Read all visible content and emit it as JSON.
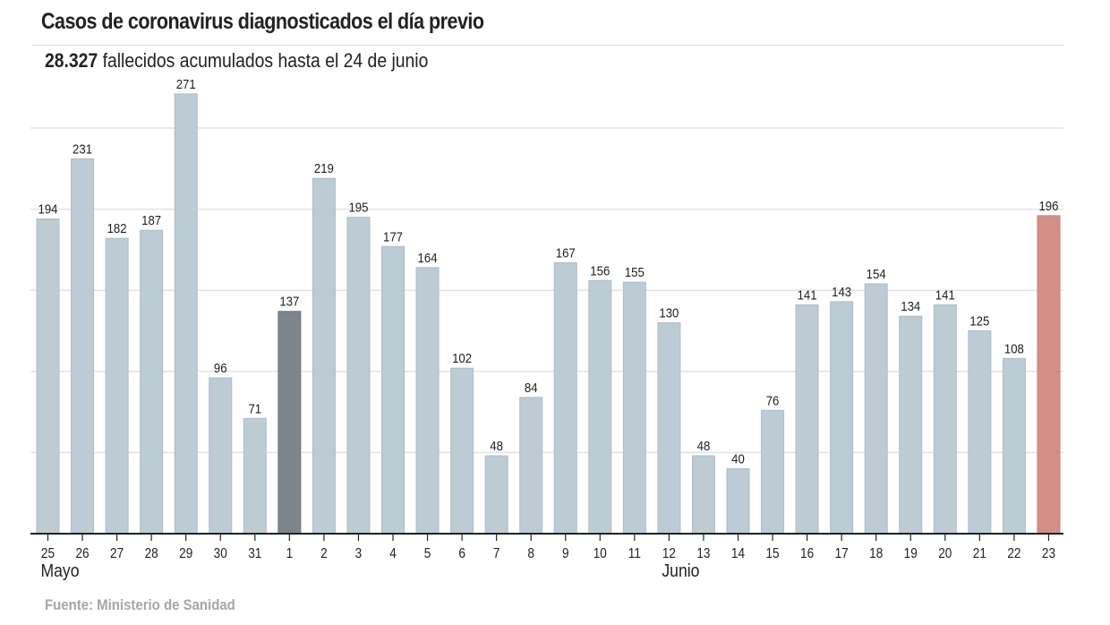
{
  "header": {
    "title": "Casos de coronavirus diagnosticados el día previo",
    "subtitle_value": "28.327",
    "subtitle_text": " fallecidos acumulados hasta el 24 de junio"
  },
  "footer": {
    "source": "Fuente: Ministerio de Sanidad"
  },
  "chart_data": {
    "type": "bar",
    "title": "Casos de coronavirus diagnosticados el día previo",
    "subtitle": "28.327 fallecidos acumulados hasta el 24 de junio",
    "xlabel": "",
    "ylabel": "",
    "ylim": [
      0,
      300
    ],
    "gridlines": [
      0,
      50,
      100,
      150,
      200,
      250
    ],
    "grid": true,
    "y_tick_labels_shown": false,
    "categories": [
      "25",
      "26",
      "27",
      "28",
      "29",
      "30",
      "31",
      "1",
      "2",
      "3",
      "4",
      "5",
      "6",
      "7",
      "8",
      "9",
      "10",
      "11",
      "12",
      "13",
      "14",
      "15",
      "16",
      "17",
      "18",
      "19",
      "20",
      "21",
      "22",
      "23"
    ],
    "values": [
      194,
      231,
      182,
      187,
      271,
      96,
      71,
      137,
      219,
      195,
      177,
      164,
      102,
      48,
      84,
      167,
      156,
      155,
      130,
      48,
      40,
      76,
      141,
      143,
      154,
      134,
      141,
      125,
      108,
      196
    ],
    "month_labels": [
      {
        "label": "Mayo",
        "at_category": "25"
      },
      {
        "label": "Junio",
        "at_category": "12"
      }
    ],
    "highlights": [
      {
        "category": "1",
        "role": "first-of-month"
      },
      {
        "category": "23",
        "role": "latest"
      }
    ],
    "colors": {
      "default": "#bccbd4",
      "highlight_month": "#7d858d",
      "latest": "#d38f87",
      "grid": "#e3e3e3",
      "axis": "#222222"
    },
    "source": "Fuente: Ministerio de Sanidad"
  }
}
